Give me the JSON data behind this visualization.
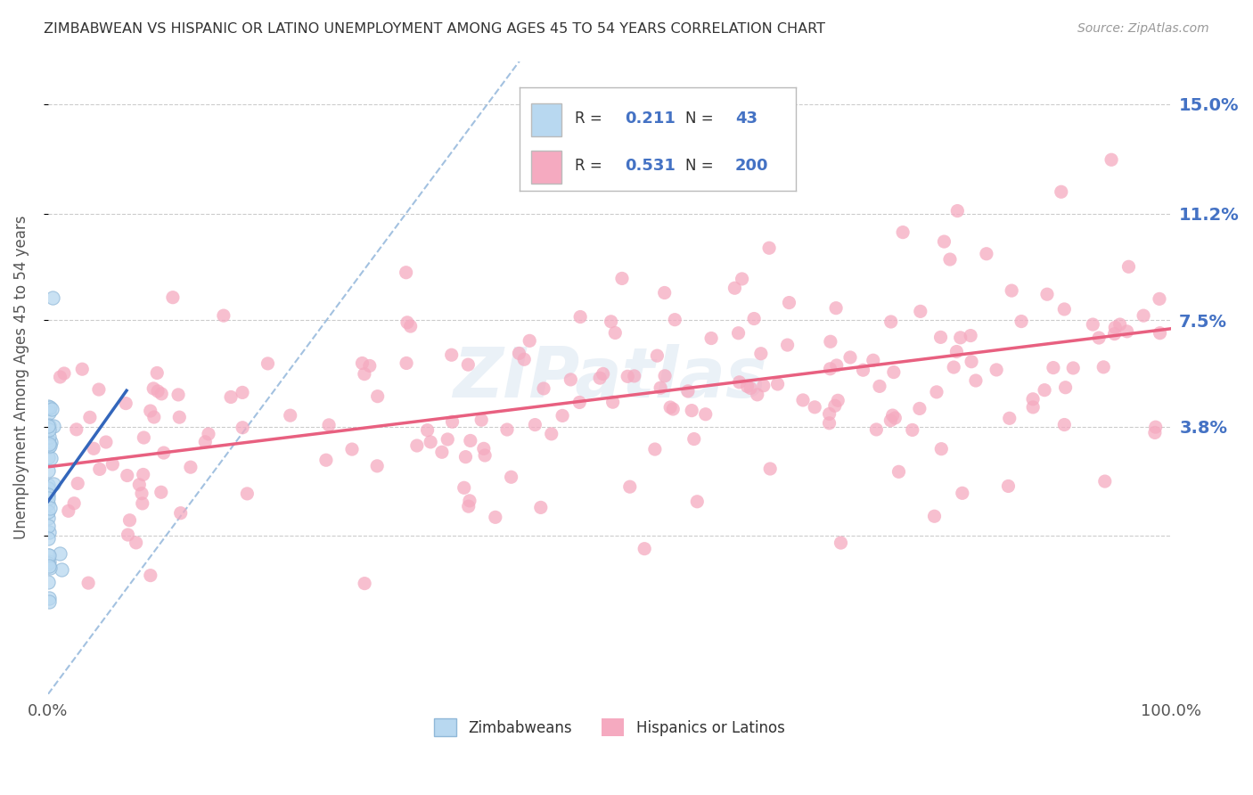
{
  "title": "ZIMBABWEAN VS HISPANIC OR LATINO UNEMPLOYMENT AMONG AGES 45 TO 54 YEARS CORRELATION CHART",
  "source": "Source: ZipAtlas.com",
  "ylabel": "Unemployment Among Ages 45 to 54 years",
  "x_min": 0.0,
  "x_max": 1.0,
  "y_min": -0.055,
  "y_max": 0.165,
  "y_ticks": [
    0.0,
    0.038,
    0.075,
    0.112,
    0.15
  ],
  "y_tick_labels": [
    "",
    "3.8%",
    "7.5%",
    "11.2%",
    "15.0%"
  ],
  "x_tick_labels": [
    "0.0%",
    "100.0%"
  ],
  "legend_entries": [
    {
      "label": "Zimbabweans",
      "color": "#b8d8f0",
      "R": "0.211",
      "N": "43"
    },
    {
      "label": "Hispanics or Latinos",
      "color": "#f5aac0",
      "R": "0.531",
      "N": "200"
    }
  ],
  "watermark": "ZIPatlas",
  "background_color": "#ffffff",
  "plot_bg_color": "#ffffff",
  "grid_color": "#cccccc",
  "zimbabwe_scatter_color": "#b8d8f0",
  "zimbabwe_edge_color": "#90b8d8",
  "hispanic_scatter_color": "#f5aac0",
  "hispanic_edge_color": "none",
  "zimbabwe_line_color": "#3366bb",
  "hispanic_line_color": "#e86080",
  "dashed_line_color": "#99bbdd",
  "title_color": "#333333",
  "source_color": "#999999",
  "tick_color": "#4472c4",
  "label_color": "#555555",
  "zimbabwe_R": 0.211,
  "zimbabwe_N": 43,
  "hispanic_R": 0.531,
  "hispanic_N": 200,
  "hispanic_intercept": 0.024,
  "hispanic_slope": 0.048,
  "zimbabwe_intercept": 0.027,
  "zimbabwe_slope": 0.55
}
